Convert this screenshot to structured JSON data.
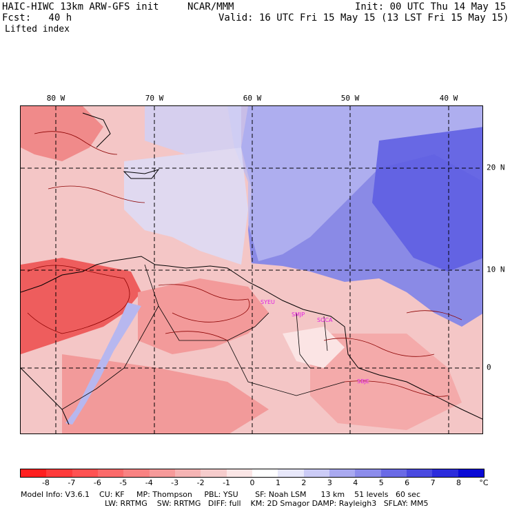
{
  "header": {
    "title": "HAIC-HIWC 13km ARW-GFS init",
    "org": "NCAR/MMM",
    "init": "Init: 00 UTC Thu 14 May 15",
    "fcst": "Fcst:   40 h",
    "valid": "Valid: 16 UTC Fri 15 May 15 (13 LST Fri 15 May 15)",
    "field": "Lifted index"
  },
  "axes": {
    "lon_labels": [
      "80 W",
      "70 W",
      "60 W",
      "50 W",
      "40 W"
    ],
    "lat_labels": [
      "20 N",
      "10 N",
      "0"
    ]
  },
  "cities": [
    "SYEU",
    "SMJP",
    "SOCA",
    "SBJE"
  ],
  "colorbar": {
    "labels": [
      "-8",
      "-7",
      "-6",
      "-5",
      "-4",
      "-3",
      "-2",
      "-1",
      "0",
      "1",
      "2",
      "3",
      "4",
      "5",
      "6",
      "7",
      "8"
    ],
    "unit": "°C",
    "colors": [
      "#ff1f1f",
      "#ff3b3b",
      "#ff5252",
      "#fb6a6a",
      "#f98282",
      "#f69a9a",
      "#f5b4b4",
      "#f6cccc",
      "#fbe6e6",
      "#ffffff",
      "#e8e8fa",
      "#cbcbf6",
      "#a9a9f0",
      "#8c8ceb",
      "#6a6ae6",
      "#4a4ae0",
      "#2b2bdc",
      "#0a0ad6"
    ]
  },
  "model_info": {
    "line1": "Model Info: V3.6.1    CU: KF     MP: Thompson     PBL: YSU       SF: Noah LSM      13 km    51 levels   60 sec",
    "line2": "LW: RRTMG    SW: RRTMG   DIFF: full    KM: 2D Smagor DAMP: Rayleigh3   SFLAY: MM5"
  }
}
